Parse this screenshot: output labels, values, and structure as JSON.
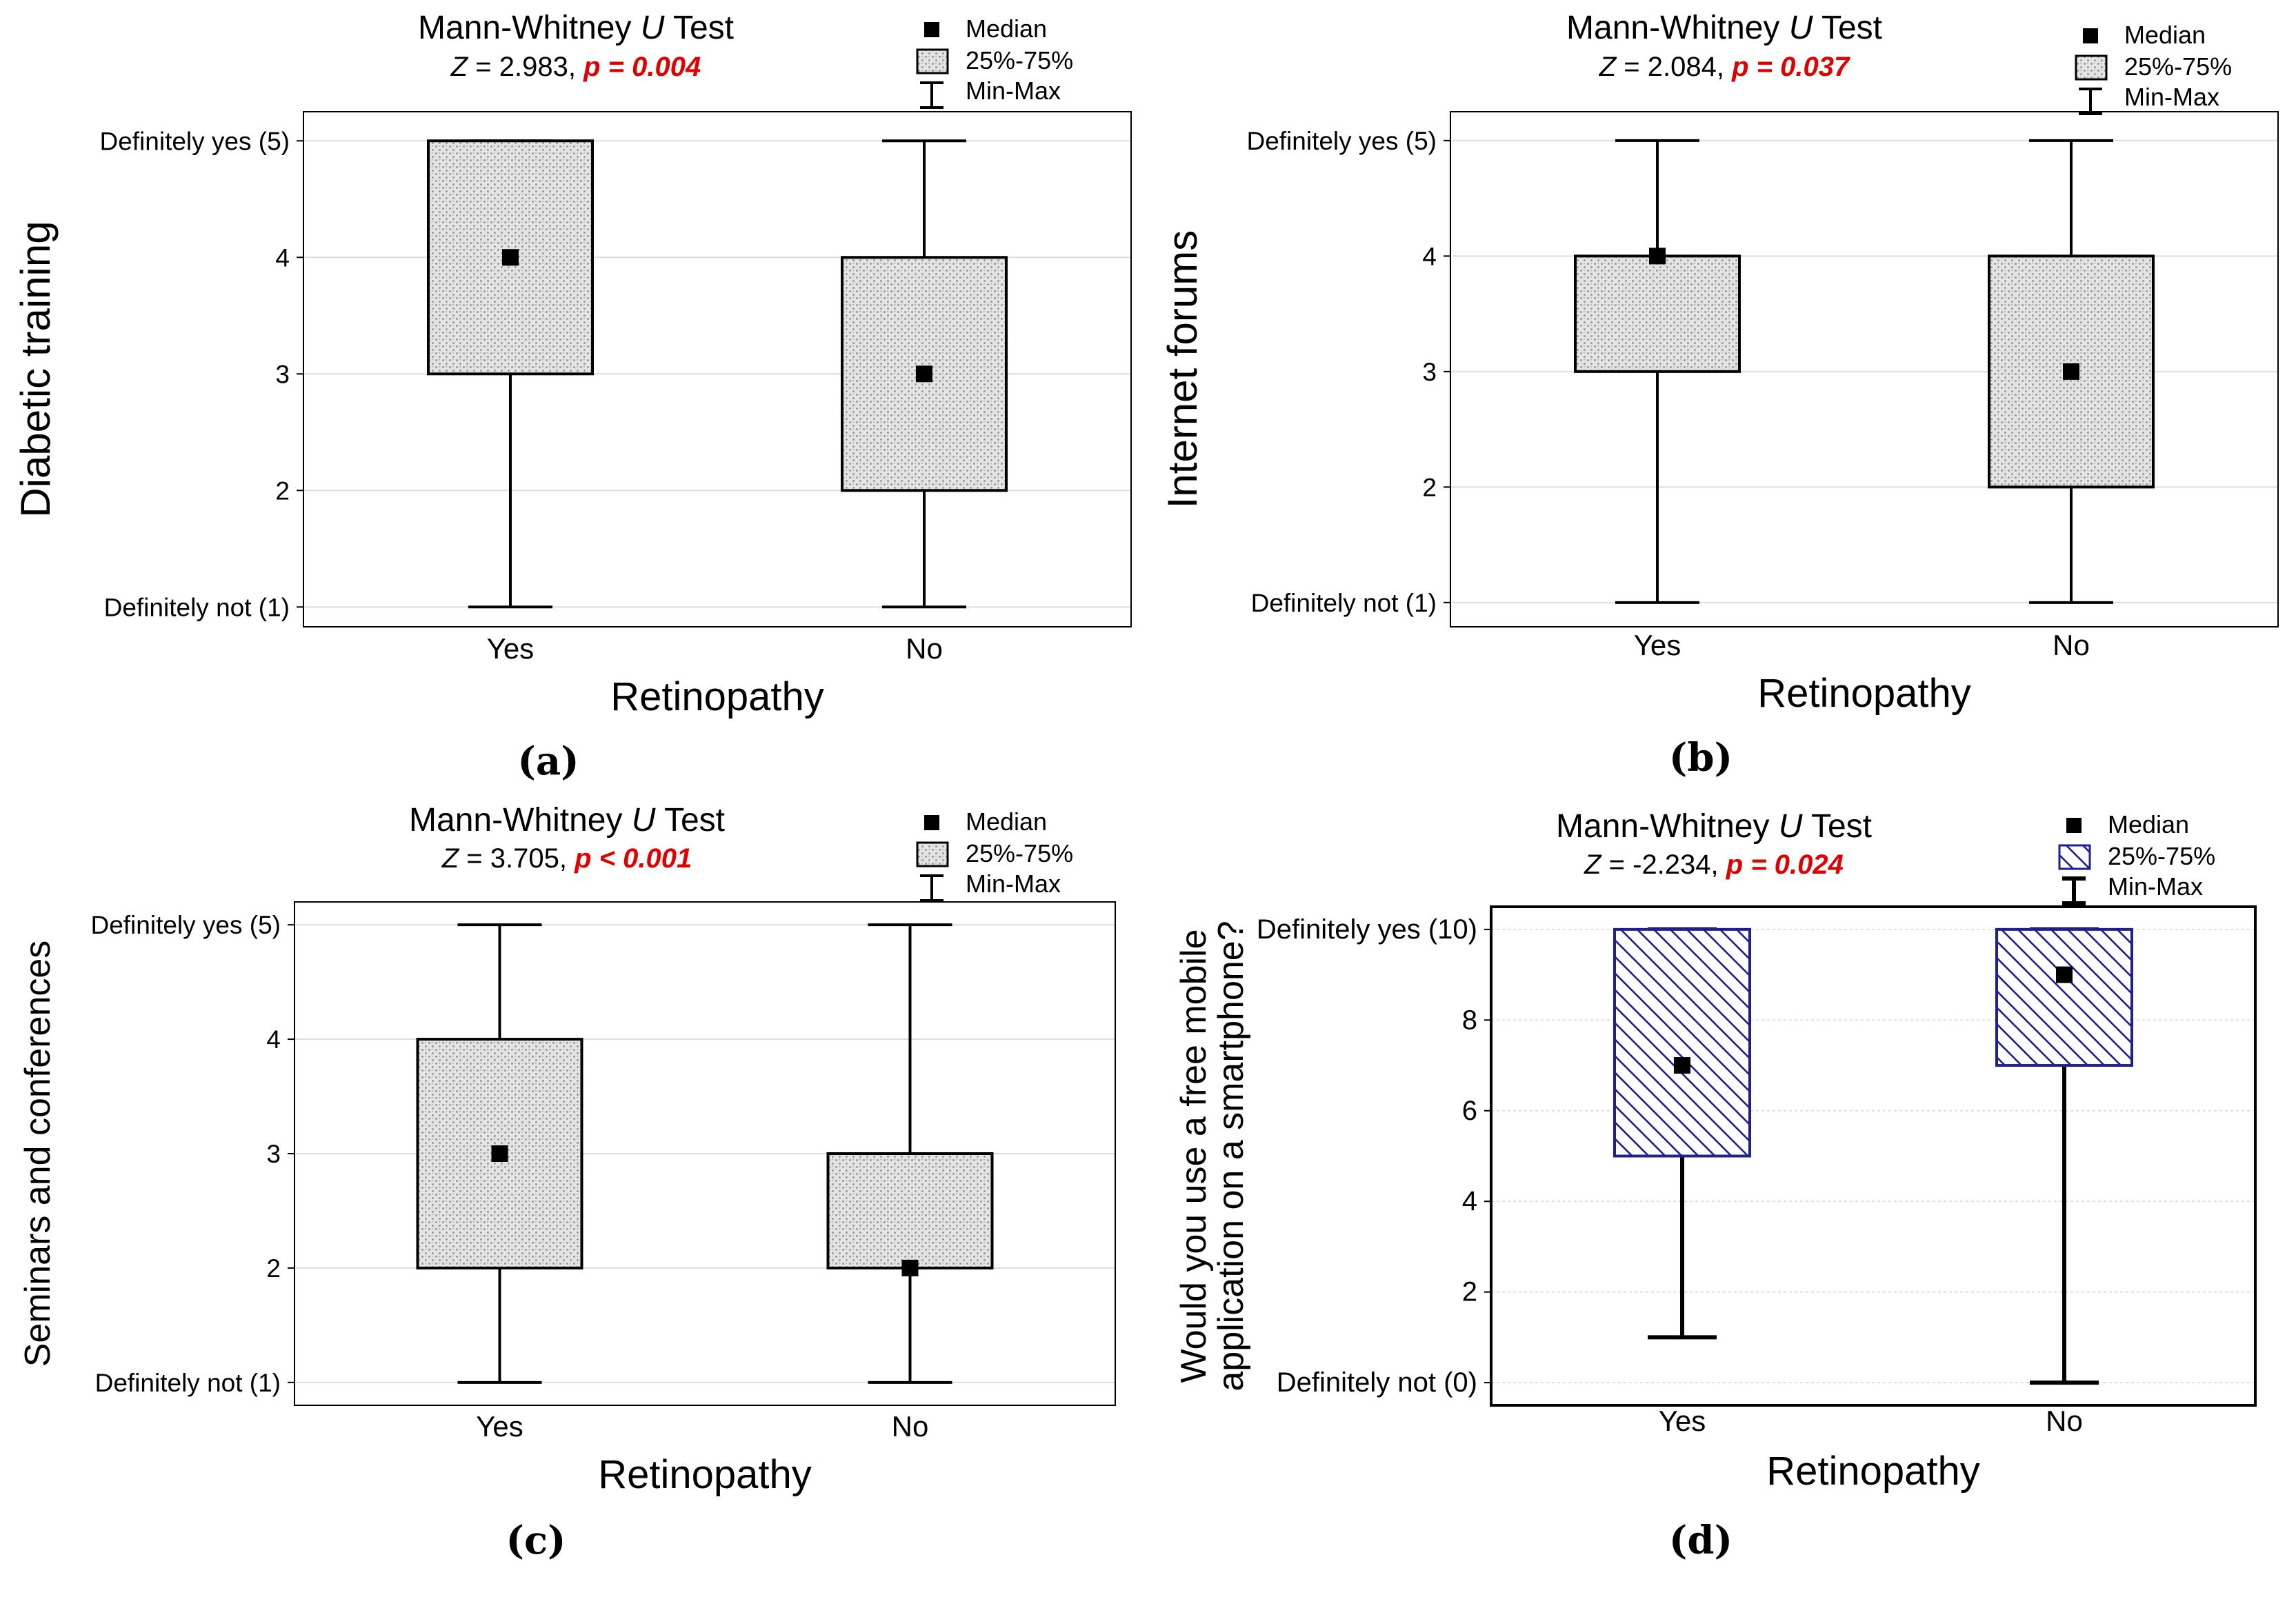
{
  "figure": {
    "legend": {
      "median": "Median",
      "box": "25%-75%",
      "whisker": "Min-Max"
    },
    "colors": {
      "text": "#000000",
      "significant": "#e00000",
      "grid": "#dddddd",
      "box_fill": "#e6e6e6",
      "hatch_blue": "#1f1f8f"
    }
  },
  "chart_data": [
    {
      "type": "box",
      "panel_label": "(a)",
      "test_title": "Mann-Whitney",
      "test_title_italic": "U",
      "test_title_suffix": "Test",
      "stat_label": "Z",
      "stat_value": "= 2.983,",
      "p_text": "p = 0.004",
      "ylabel": "Diabetic training",
      "xlabel": "Retinopathy",
      "categories": [
        "Yes",
        "No"
      ],
      "ylim": [
        0.83,
        5.25
      ],
      "yticks": [
        1,
        2,
        3,
        4,
        5
      ],
      "ytick_labels": [
        "Definitely not (1)",
        "2",
        "3",
        "4",
        "Definitely yes (5)"
      ],
      "style": "gray",
      "boxes": [
        {
          "category": "Yes",
          "min": 1,
          "q1": 3,
          "median": 4,
          "q3": 5,
          "max": 5
        },
        {
          "category": "No",
          "min": 1,
          "q1": 2,
          "median": 3,
          "q3": 4,
          "max": 5
        }
      ]
    },
    {
      "type": "box",
      "panel_label": "(b)",
      "test_title": "Mann-Whitney",
      "test_title_italic": "U",
      "test_title_suffix": "Test",
      "stat_label": "Z",
      "stat_value": "= 2.084,",
      "p_text": "p = 0.037",
      "ylabel": "Internet forums",
      "xlabel": "Retinopathy",
      "categories": [
        "Yes",
        "No"
      ],
      "ylim": [
        0.79,
        5.25
      ],
      "yticks": [
        1,
        2,
        3,
        4,
        5
      ],
      "ytick_labels": [
        "Definitely not (1)",
        "2",
        "3",
        "4",
        "Definitely yes (5)"
      ],
      "style": "gray",
      "boxes": [
        {
          "category": "Yes",
          "min": 1,
          "q1": 3,
          "median": 4,
          "q3": 4,
          "max": 5
        },
        {
          "category": "No",
          "min": 1,
          "q1": 2,
          "median": 3,
          "q3": 4,
          "max": 5
        }
      ]
    },
    {
      "type": "box",
      "panel_label": "(c)",
      "test_title": "Mann-Whitney",
      "test_title_italic": "U",
      "test_title_suffix": "Test",
      "stat_label": "Z",
      "stat_value": "= 3.705,",
      "p_text": "p < 0.001",
      "ylabel": "Seminars and conferences",
      "xlabel": "Retinopathy",
      "categories": [
        "Yes",
        "No"
      ],
      "ylim": [
        0.8,
        5.2
      ],
      "yticks": [
        1,
        2,
        3,
        4,
        5
      ],
      "ytick_labels": [
        "Definitely not (1)",
        "2",
        "3",
        "4",
        "Definitely yes (5)"
      ],
      "style": "gray",
      "boxes": [
        {
          "category": "Yes",
          "min": 1,
          "q1": 2,
          "median": 3,
          "q3": 4,
          "max": 5
        },
        {
          "category": "No",
          "min": 1,
          "q1": 2,
          "median": 2,
          "q3": 3,
          "max": 5
        }
      ]
    },
    {
      "type": "box",
      "panel_label": "(d)",
      "test_title": "Mann-Whitney",
      "test_title_italic": "U",
      "test_title_suffix": "Test",
      "stat_label": "Z",
      "stat_value": "= -2.234,",
      "p_text": "p = 0.024",
      "ylabel": "Would you use a free mobile application on a smartphone?",
      "ylabel_lines": [
        "Would you use a free mobile",
        "application on a smartphone?"
      ],
      "xlabel": "Retinopathy",
      "categories": [
        "Yes",
        "No"
      ],
      "ylim": [
        -0.5,
        10.5
      ],
      "yticks": [
        0,
        2,
        4,
        6,
        8,
        10
      ],
      "ytick_labels": [
        "Definitely not (0)",
        "2",
        "4",
        "6",
        "8",
        "Definitely yes (10)"
      ],
      "style": "blue",
      "boxes": [
        {
          "category": "Yes",
          "min": 1,
          "q1": 5,
          "median": 7,
          "q3": 10,
          "max": 10
        },
        {
          "category": "No",
          "min": 0,
          "q1": 7,
          "median": 9,
          "q3": 10,
          "max": 10
        }
      ]
    }
  ]
}
